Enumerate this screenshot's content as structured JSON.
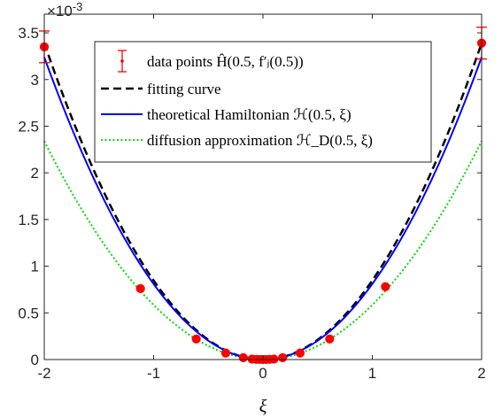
{
  "chart_data": {
    "type": "line",
    "title": "",
    "xlabel": "ξ",
    "ylabel": "",
    "y_exponent_label": "×10",
    "y_exponent_power": "-3",
    "xlim": [
      -2,
      2
    ],
    "ylim": [
      0,
      3.7
    ],
    "x_ticks": [
      -2,
      -1,
      0,
      1,
      2
    ],
    "x_tick_labels": [
      "-2",
      "-1",
      "0",
      "1",
      "2"
    ],
    "y_ticks": [
      0,
      0.5,
      1,
      1.5,
      2,
      2.5,
      3,
      3.5
    ],
    "y_tick_labels": [
      "0",
      "0.5",
      "1",
      "1.5",
      "2",
      "2.5",
      "3",
      "3.5"
    ],
    "grid": false,
    "legend_position": "top-center",
    "legend": [
      {
        "label": "data points Ĥ(0.5, f′ⱼ(0.5))",
        "style": "errorbar",
        "color": "#ff0000"
      },
      {
        "label": "fitting curve",
        "style": "dashed",
        "color": "#000000"
      },
      {
        "label": "theoretical Hamiltonian ℋ(0.5, ξ)",
        "style": "solid",
        "color": "#0000ff"
      },
      {
        "label": "diffusion approximation ℋ_D(0.5, ξ)",
        "style": "dotted",
        "color": "#00dd00"
      }
    ],
    "series": [
      {
        "name": "data points Ĥ(0.5, f′ⱼ(0.5))",
        "kind": "points",
        "color": "#ff0000",
        "x": [
          -2.0,
          -1.12,
          -0.61,
          -0.34,
          -0.18,
          -0.1,
          -0.06,
          -0.03,
          0.0,
          0.03,
          0.06,
          0.1,
          0.18,
          0.34,
          0.61,
          1.12,
          2.0
        ],
        "y": [
          3.35,
          0.76,
          0.22,
          0.07,
          0.02,
          0.005,
          0.002,
          0.0005,
          0.0,
          0.0005,
          0.002,
          0.005,
          0.02,
          0.07,
          0.22,
          0.78,
          3.39
        ],
        "err": [
          0.17,
          0,
          0,
          0,
          0,
          0,
          0,
          0,
          0,
          0,
          0,
          0,
          0,
          0,
          0,
          0,
          0.17
        ]
      },
      {
        "name": "fitting curve",
        "kind": "line",
        "style": "dashed",
        "color": "#000000",
        "coef": 0.8475
      },
      {
        "name": "theoretical Hamiltonian ℋ(0.5, ξ)",
        "kind": "line",
        "style": "solid",
        "color": "#0000ff",
        "coef": 0.81
      },
      {
        "name": "diffusion approximation ℋ_D(0.5, ξ)",
        "kind": "line",
        "style": "dotted",
        "color": "#00dd00",
        "coef": 0.585
      }
    ]
  }
}
